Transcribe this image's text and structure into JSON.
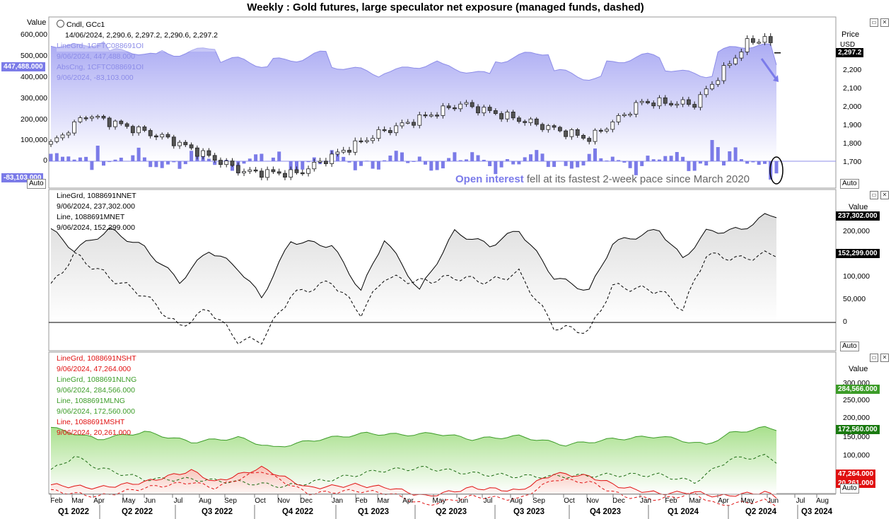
{
  "title": "Weekly : Gold futures, large speculator net exposure (managed funds, dashed)",
  "colors": {
    "oi_area": "#c9caf7",
    "oi_line": "#8c8ce8",
    "oi_bar": "#7b7be8",
    "candle": "#222222",
    "net": "#000000",
    "long": "#3c9c28",
    "short": "#e01010",
    "highlight": "#7b7bea"
  },
  "panel1": {
    "left_axis_label": "Value",
    "left_ticks": [
      "600,000",
      "500,000",
      "400,000",
      "300,000",
      "200,000",
      "100,000",
      "0"
    ],
    "left_tag_oi": "447,488.000",
    "left_tag_chg": "-83,103.000",
    "right_axis_label": "Price",
    "right_unit": "USD",
    "right_ticks": [
      "2,200",
      "2,100",
      "2,000",
      "1,900",
      "1,800",
      "1,700"
    ],
    "right_tag_price": "2,297.2",
    "legend": [
      "Cndl, GCc1",
      "14/06/2024, 2,290.6, 2,297.2, 2,290.6, 2,297.2",
      "LineGrd, 1CFTC088691OI",
      "9/06/2024, 447,488.000",
      "AbsCng, 1CFTC088691OI",
      "9/06/2024, -83,103.000"
    ],
    "annotation_highlight": "Open interest",
    "annotation_text": " fell at its fastest 2-week pace since March 2020",
    "auto": "Auto"
  },
  "panel2": {
    "right_axis_label": "Value",
    "right_ticks": [
      "200,000",
      "100,000",
      "50,000",
      "0"
    ],
    "tag_net": "237,302.000",
    "tag_mnet": "152,299.000",
    "legend": [
      "LineGrd, 1088691NNET",
      "9/06/2024, 237,302.000",
      "Line, 1088691MNET",
      "9/06/2024, 152,299.000"
    ],
    "auto": "Auto"
  },
  "panel3": {
    "right_axis_label": "Value",
    "right_ticks": [
      "300,000",
      "250,000",
      "200,000",
      "150,000",
      "100,000"
    ],
    "tag_nlng": "284,566.000",
    "tag_mlng": "172,560.000",
    "tag_nsht": "47,264.000",
    "tag_msht": "20,261.000",
    "legend": [
      "LineGrd, 1088691NSHT",
      "9/06/2024, 47,264.000",
      "LineGrd, 1088691NLNG",
      "9/06/2024, 284,566.000",
      "Line, 1088691MLNG",
      "9/06/2024, 172,560.000",
      "Line, 1088691MSHT",
      "9/06/2024, 20,261.000"
    ],
    "auto": "Auto"
  },
  "x_axis": {
    "months": [
      "Feb",
      "Mar",
      "Apr",
      "May",
      "Jun",
      "Jul",
      "Aug",
      "Sep",
      "Oct",
      "Nov",
      "Dec",
      "Jan",
      "Feb",
      "Mar",
      "Apr",
      "May",
      "Jun",
      "Jul",
      "Aug",
      "Sep",
      "Oct",
      "Nov",
      "Dec",
      "Jan",
      "Feb",
      "Mar",
      "Apr",
      "May",
      "Jun",
      "Jul",
      "Aug"
    ],
    "quarters": [
      "Q1 2022",
      "Q2 2022",
      "Q3 2022",
      "Q4 2022",
      "Q1 2023",
      "Q2 2023",
      "Q3 2023",
      "Q4 2023",
      "Q1 2024",
      "Q2 2024",
      "Q3 2024"
    ]
  },
  "chart_data": [
    {
      "type": "area",
      "name": "LineGrd, 1CFTC088691OI (open interest)",
      "x": [
        "2022-01",
        "2022-04",
        "2022-07",
        "2022-10",
        "2023-01",
        "2023-04",
        "2023-07",
        "2023-10",
        "2024-01",
        "2024-03",
        "2024-05",
        "2024-06-09"
      ],
      "values": [
        545000,
        480000,
        520000,
        470000,
        490000,
        520000,
        470000,
        500000,
        440000,
        460000,
        545000,
        447488
      ]
    },
    {
      "type": "bar",
      "name": "AbsCng, 1CFTC088691OI",
      "last_value": -83103
    },
    {
      "type": "candlestick",
      "name": "Cndl, GCc1",
      "last": {
        "date": "2024-06-14",
        "open": 2290.6,
        "high": 2297.2,
        "low": 2290.6,
        "close": 2297.2
      },
      "x": [
        "2022-02",
        "2022-03",
        "2022-06",
        "2022-09",
        "2022-11",
        "2023-02",
        "2023-05",
        "2023-08",
        "2023-10",
        "2023-12",
        "2024-02",
        "2024-04",
        "2024-05",
        "2024-06"
      ],
      "values": [
        1800,
        1960,
        1830,
        1650,
        1640,
        1860,
        2020,
        1900,
        1830,
        2030,
        2020,
        2350,
        2380,
        2297.2
      ]
    },
    {
      "type": "area",
      "name": "LineGrd, 1088691NNET",
      "last_value": 237302
    },
    {
      "type": "line",
      "name": "Line, 1088691MNET",
      "last_value": 152299
    },
    {
      "type": "area",
      "name": "LineGrd, 1088691NLNG",
      "last_value": 284566
    },
    {
      "type": "line",
      "name": "Line, 1088691MLNG",
      "last_value": 172560
    },
    {
      "type": "area",
      "name": "LineGrd, 1088691NSHT",
      "last_value": 47264
    },
    {
      "type": "line",
      "name": "Line, 1088691MSHT",
      "last_value": 20261
    }
  ]
}
